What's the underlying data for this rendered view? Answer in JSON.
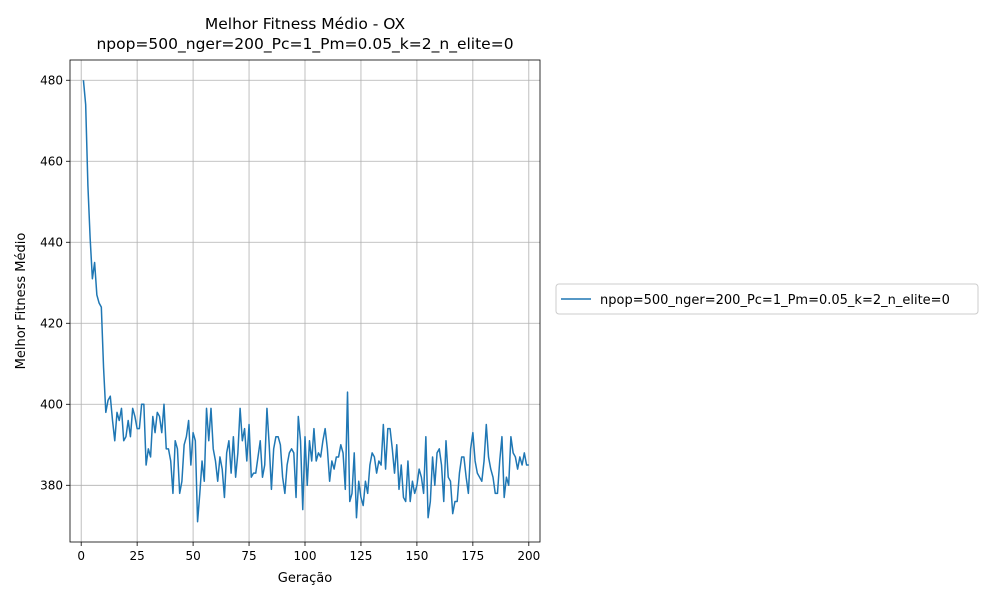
{
  "chart_data": {
    "type": "line",
    "title": "Melhor Fitness Médio - OX",
    "subtitle": "npop=500_nger=200_Pc=1_Pm=0.05_k=2_n_elite=0",
    "xlabel": "Geração",
    "ylabel": "Melhor Fitness Médio",
    "xlim": [
      -5,
      205
    ],
    "ylim": [
      366,
      485
    ],
    "xticks": [
      0,
      25,
      50,
      75,
      100,
      125,
      150,
      175,
      200
    ],
    "yticks": [
      380,
      400,
      420,
      440,
      460,
      480
    ],
    "grid": true,
    "legend_position": "center-right, outside plot",
    "series": [
      {
        "name": "npop=500_nger=200_Pc=1_Pm=0.05_k=2_n_elite=0",
        "color": "#1f77b4",
        "x": [
          1,
          2,
          3,
          4,
          5,
          6,
          7,
          8,
          9,
          10,
          11,
          12,
          13,
          14,
          15,
          16,
          17,
          18,
          19,
          20,
          21,
          22,
          23,
          24,
          25,
          26,
          27,
          28,
          29,
          30,
          31,
          32,
          33,
          34,
          35,
          36,
          37,
          38,
          39,
          40,
          41,
          42,
          43,
          44,
          45,
          46,
          47,
          48,
          49,
          50,
          51,
          52,
          53,
          54,
          55,
          56,
          57,
          58,
          59,
          60,
          61,
          62,
          63,
          64,
          65,
          66,
          67,
          68,
          69,
          70,
          71,
          72,
          73,
          74,
          75,
          76,
          77,
          78,
          79,
          80,
          81,
          82,
          83,
          84,
          85,
          86,
          87,
          88,
          89,
          90,
          91,
          92,
          93,
          94,
          95,
          96,
          97,
          98,
          99,
          100,
          101,
          102,
          103,
          104,
          105,
          106,
          107,
          108,
          109,
          110,
          111,
          112,
          113,
          114,
          115,
          116,
          117,
          118,
          119,
          120,
          121,
          122,
          123,
          124,
          125,
          126,
          127,
          128,
          129,
          130,
          131,
          132,
          133,
          134,
          135,
          136,
          137,
          138,
          139,
          140,
          141,
          142,
          143,
          144,
          145,
          146,
          147,
          148,
          149,
          150,
          151,
          152,
          153,
          154,
          155,
          156,
          157,
          158,
          159,
          160,
          161,
          162,
          163,
          164,
          165,
          166,
          167,
          168,
          169,
          170,
          171,
          172,
          173,
          174,
          175,
          176,
          177,
          178,
          179,
          180,
          181,
          182,
          183,
          184,
          185,
          186,
          187,
          188,
          189,
          190,
          191,
          192,
          193,
          194,
          195,
          196,
          197,
          198,
          199,
          200
        ],
        "y": [
          480,
          474,
          454,
          441,
          431,
          435,
          427,
          425,
          424,
          409,
          398,
          401,
          402,
          396,
          391,
          398,
          396,
          399,
          391,
          392,
          396,
          392,
          399,
          397,
          394,
          394,
          400,
          400,
          385,
          389,
          387,
          397,
          393,
          398,
          397,
          393,
          400,
          389,
          389,
          386,
          378,
          391,
          389,
          378,
          381,
          390,
          392,
          396,
          385,
          393,
          391,
          371,
          378,
          386,
          381,
          399,
          391,
          399,
          389,
          386,
          381,
          387,
          384,
          377,
          388,
          391,
          383,
          392,
          382,
          388,
          399,
          391,
          394,
          386,
          395,
          382,
          383,
          383,
          387,
          391,
          382,
          385,
          399,
          390,
          379,
          389,
          392,
          392,
          390,
          382,
          378,
          385,
          388,
          389,
          388,
          377,
          397,
          391,
          374,
          392,
          380,
          391,
          386,
          394,
          386,
          388,
          387,
          391,
          394,
          389,
          381,
          386,
          384,
          387,
          387,
          390,
          388,
          379,
          403,
          376,
          378,
          388,
          372,
          381,
          377,
          375,
          381,
          378,
          385,
          388,
          387,
          383,
          386,
          385,
          395,
          384,
          394,
          394,
          389,
          383,
          390,
          379,
          385,
          377,
          376,
          386,
          376,
          381,
          378,
          380,
          384,
          382,
          378,
          392,
          372,
          376,
          387,
          380,
          388,
          389,
          385,
          376,
          391,
          382,
          381,
          373,
          376,
          376,
          383,
          387,
          387,
          382,
          378,
          389,
          393,
          386,
          383,
          382,
          381,
          386,
          395,
          387,
          384,
          382,
          378,
          378,
          386,
          392,
          377,
          382,
          380,
          392,
          388,
          387,
          384,
          387,
          385,
          388,
          385,
          385
        ]
      }
    ]
  }
}
